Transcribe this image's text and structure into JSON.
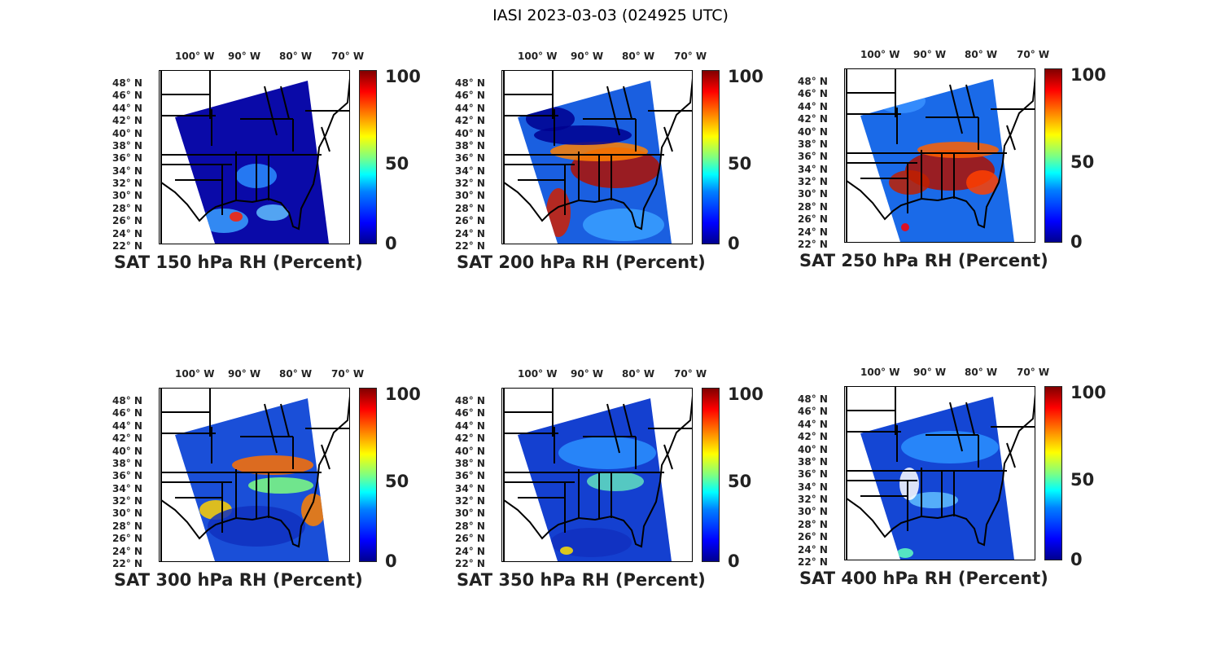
{
  "figure_title": "IASI 2023-03-03 (024925 UTC)",
  "lon_labels": [
    "100° W",
    "90° W",
    "80° W",
    "70° W"
  ],
  "lat_labels": [
    "48° N",
    "46° N",
    "44° N",
    "42° N",
    "40° N",
    "38° N",
    "36° N",
    "34° N",
    "32° N",
    "30° N",
    "28° N",
    "26° N",
    "24° N",
    "22° N"
  ],
  "colorbar_ticks": [
    "100",
    "50",
    "0"
  ],
  "panels": [
    {
      "title": "SAT 150 hPa RH (Percent)",
      "base_color": "#0a0aa8"
    },
    {
      "title": "SAT 200 hPa RH (Percent)",
      "base_color": "#1a5fe0"
    },
    {
      "title": "SAT 250 hPa RH (Percent)",
      "base_color": "#1a6ae8"
    },
    {
      "title": "SAT 300 hPa RH (Percent)",
      "base_color": "#1a4fd8"
    },
    {
      "title": "SAT 350 hPa RH (Percent)",
      "base_color": "#1440d0"
    },
    {
      "title": "SAT 400 hPa RH (Percent)",
      "base_color": "#1446d4"
    }
  ]
}
